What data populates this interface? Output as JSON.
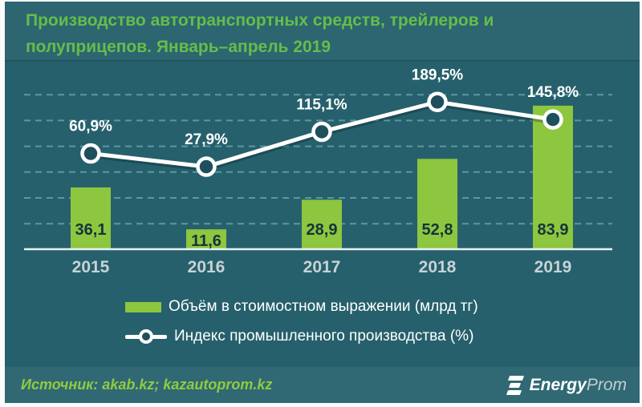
{
  "title_lines": [
    "Производство автотранспортных средств, трейлеров и",
    "полуприцепов. Январь–апрель 2019"
  ],
  "chart_data": {
    "type": "combo",
    "title": "Производство автотранспортных средств, трейлеров и полуприцепов. Январь–апрель 2019",
    "categories": [
      "2015",
      "2016",
      "2017",
      "2018",
      "2019"
    ],
    "series": [
      {
        "name": "Объём в стоимостном выражении (млрд тг)",
        "type": "bar",
        "values": [
          36.1,
          11.6,
          28.9,
          52.8,
          83.9
        ],
        "labels": [
          "36,1",
          "11,6",
          "28,9",
          "52,8",
          "83,9"
        ],
        "color": "#8dc63f"
      },
      {
        "name": "Индекс промышленного производства (%)",
        "type": "line",
        "values": [
          60.9,
          27.9,
          115.1,
          189.5,
          145.8
        ],
        "labels": [
          "60,9%",
          "27,9%",
          "115,1%",
          "189,5%",
          "145,8%"
        ],
        "color": "#ffffff",
        "marker_fill": "#1e4f5c"
      }
    ],
    "xlabel": "",
    "ylabel": "",
    "grid": true,
    "gridline_count": 6,
    "legend_position": "bottom"
  },
  "footer": {
    "source": "Источник: akab.kz; kazautoprom.kz",
    "logo": {
      "brand_bold": "Energy",
      "brand_light": "Prom",
      "icon": "energyprom-e-icon"
    }
  },
  "colors": {
    "frame": "#fbfbfb",
    "title_band": "#2d6571",
    "chart_band": "#26606c",
    "footer_band": "#306974",
    "title_text": "#64be4a",
    "source_text": "#8fcb3f",
    "bar": "#8dc63f",
    "year_label": "#c6d3d7",
    "bar_label": "#16333c",
    "grid": "#8ac4ce",
    "axis": "#e9f1f2",
    "line": "#ffffff",
    "marker_inner": "#1e4f5c"
  }
}
